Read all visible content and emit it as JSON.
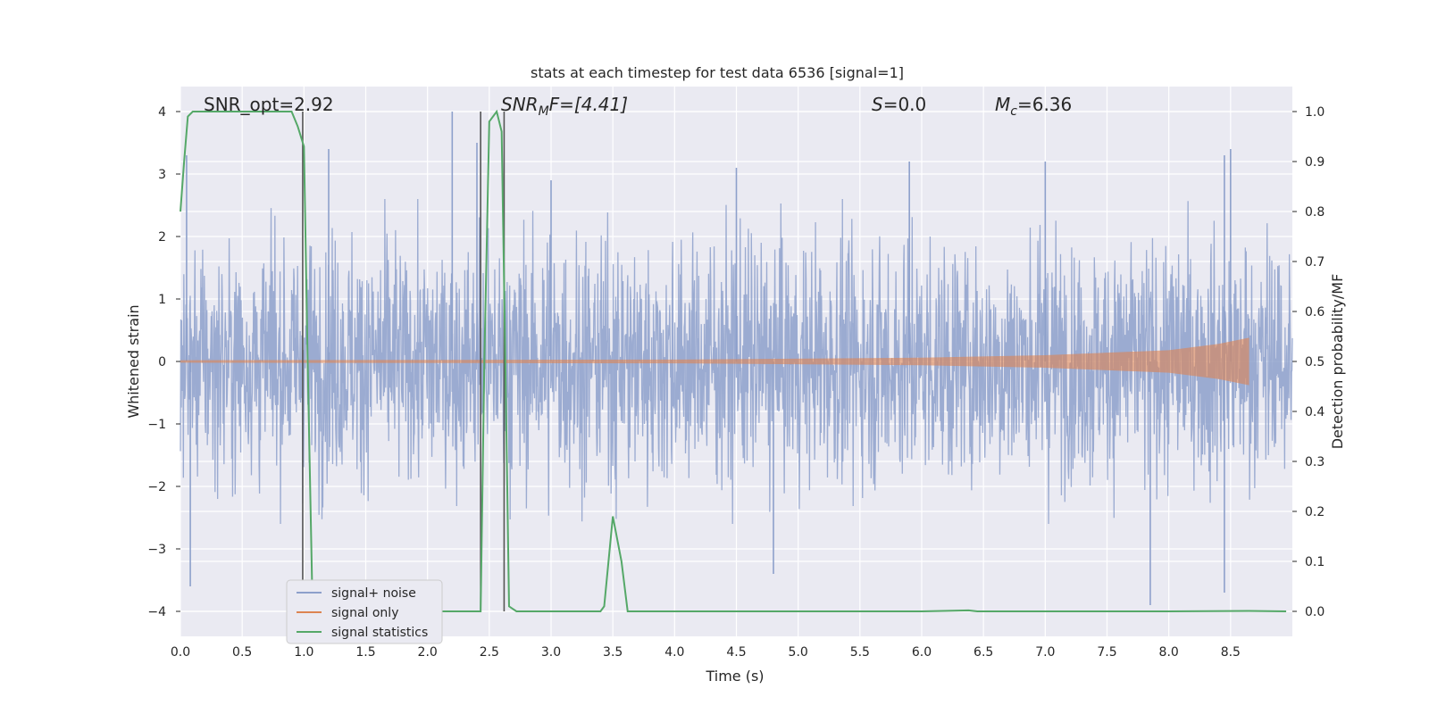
{
  "chart_data": {
    "type": "line",
    "title": "stats at each timestep for test data 6536 [signal=1]",
    "xlabel": "Time (s)",
    "ylabel": "Whitened strain",
    "y2label": "Detection probability/MF",
    "xlim": [
      0,
      9.0
    ],
    "ylim": [
      -4.4,
      4.4
    ],
    "y2lim": [
      -0.05,
      1.05
    ],
    "xticks": [
      "0.0",
      "0.5",
      "1.0",
      "1.5",
      "2.0",
      "2.5",
      "3.0",
      "3.5",
      "4.0",
      "4.5",
      "5.0",
      "5.5",
      "6.0",
      "6.5",
      "7.0",
      "7.5",
      "8.0",
      "8.5"
    ],
    "yticks": [
      "4",
      "3",
      "2",
      "1",
      "0",
      "−1",
      "−2",
      "−3",
      "−4"
    ],
    "y2ticks": [
      "1.0",
      "0.9",
      "0.8",
      "0.7",
      "0.6",
      "0.5",
      "0.4",
      "0.3",
      "0.2",
      "0.1",
      "0.0"
    ],
    "grid": true,
    "legend_position": "lower-left",
    "annotations": {
      "snr_opt": "SNR_opt=2.92",
      "snr_mf_base": "SNR",
      "snr_mf_sub": "M",
      "snr_mf_rest": "F=[4.41]",
      "s_base": "S",
      "s_rest": "=0.0",
      "mc_base": "M",
      "mc_sub": "c",
      "mc_rest": "=6.36"
    },
    "series": [
      {
        "name": "signal+ noise",
        "color": "#8da0cb",
        "description_amplitude": [
          -2.2,
          2.2
        ],
        "peaks": [
          [
            0.05,
            3.3
          ],
          [
            1.2,
            3.4
          ],
          [
            2.2,
            4.0
          ],
          [
            2.4,
            3.5
          ],
          [
            3.0,
            2.9
          ],
          [
            4.5,
            3.1
          ],
          [
            5.9,
            3.2
          ],
          [
            7.0,
            3.2
          ],
          [
            8.45,
            3.3
          ],
          [
            8.5,
            3.4
          ],
          [
            0.08,
            -3.6
          ],
          [
            4.8,
            -3.4
          ],
          [
            7.85,
            -3.9
          ],
          [
            8.45,
            -3.7
          ]
        ]
      },
      {
        "name": "signal only",
        "color": "#dd8452",
        "envelope": [
          [
            0.0,
            0.02
          ],
          [
            4.0,
            0.03
          ],
          [
            6.0,
            0.06
          ],
          [
            7.0,
            0.1
          ],
          [
            8.0,
            0.18
          ],
          [
            8.4,
            0.28
          ],
          [
            8.65,
            0.38
          ]
        ]
      },
      {
        "name": "signal statistics",
        "color": "#55a868",
        "axis": "right",
        "points": [
          [
            0.0,
            0.8
          ],
          [
            0.03,
            0.9
          ],
          [
            0.06,
            0.99
          ],
          [
            0.1,
            1.0
          ],
          [
            0.3,
            1.0
          ],
          [
            0.6,
            1.0
          ],
          [
            0.9,
            1.0
          ],
          [
            0.95,
            0.97
          ],
          [
            1.0,
            0.93
          ],
          [
            1.03,
            0.5
          ],
          [
            1.07,
            0.0
          ],
          [
            1.3,
            0.0
          ],
          [
            2.0,
            0.0
          ],
          [
            2.43,
            0.0
          ],
          [
            2.46,
            0.5
          ],
          [
            2.5,
            0.98
          ],
          [
            2.56,
            1.0
          ],
          [
            2.6,
            0.96
          ],
          [
            2.63,
            0.5
          ],
          [
            2.66,
            0.01
          ],
          [
            2.72,
            0.0
          ],
          [
            3.0,
            0.0
          ],
          [
            3.4,
            0.0
          ],
          [
            3.43,
            0.01
          ],
          [
            3.5,
            0.19
          ],
          [
            3.57,
            0.1
          ],
          [
            3.62,
            0.0
          ],
          [
            4.0,
            0.0
          ],
          [
            5.0,
            0.0
          ],
          [
            6.0,
            0.0
          ],
          [
            6.38,
            0.002
          ],
          [
            6.45,
            0.0
          ],
          [
            7.0,
            0.0
          ],
          [
            8.0,
            0.0
          ],
          [
            8.65,
            0.001
          ],
          [
            8.95,
            0.0
          ]
        ]
      }
    ],
    "vertical_markers": [
      0.99,
      2.43,
      2.62
    ]
  }
}
